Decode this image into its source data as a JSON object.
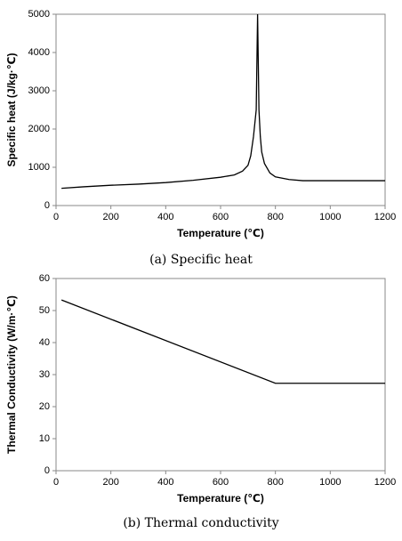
{
  "chart_data": [
    {
      "type": "line",
      "caption": "(a) Specific heat",
      "x_label": "Temperature (℃)",
      "y_label": "Specific heat (J/kg·℃)",
      "x": [
        20,
        100,
        200,
        300,
        400,
        500,
        600,
        650,
        680,
        700,
        710,
        720,
        730,
        735,
        740,
        745,
        750,
        760,
        780,
        800,
        850,
        900,
        1200
      ],
      "series": [
        {
          "color": "#000000",
          "values": [
            450,
            490,
            530,
            560,
            600,
            660,
            740,
            800,
            900,
            1050,
            1300,
            1800,
            2500,
            5000,
            2500,
            1800,
            1400,
            1100,
            850,
            750,
            680,
            650,
            650
          ]
        }
      ],
      "xlim": [
        0,
        1200
      ],
      "xticks": [
        0,
        200,
        400,
        600,
        800,
        1000,
        1200
      ],
      "ylim": [
        0,
        5000
      ],
      "yticks": [
        0,
        1000,
        2000,
        3000,
        4000,
        5000
      ]
    },
    {
      "type": "line",
      "caption": "(b) Thermal conductivity",
      "x_label": "Temperature (℃)",
      "y_label": "Thermal Conductivity (W/m·℃)",
      "x": [
        20,
        800,
        1200
      ],
      "series": [
        {
          "color": "#000000",
          "values": [
            53.3,
            27.3,
            27.3
          ]
        }
      ],
      "xlim": [
        0,
        1200
      ],
      "xticks": [
        0,
        200,
        400,
        600,
        800,
        1000,
        1200
      ],
      "ylim": [
        0,
        60
      ],
      "yticks": [
        0,
        10,
        20,
        30,
        40,
        50,
        60
      ]
    }
  ]
}
